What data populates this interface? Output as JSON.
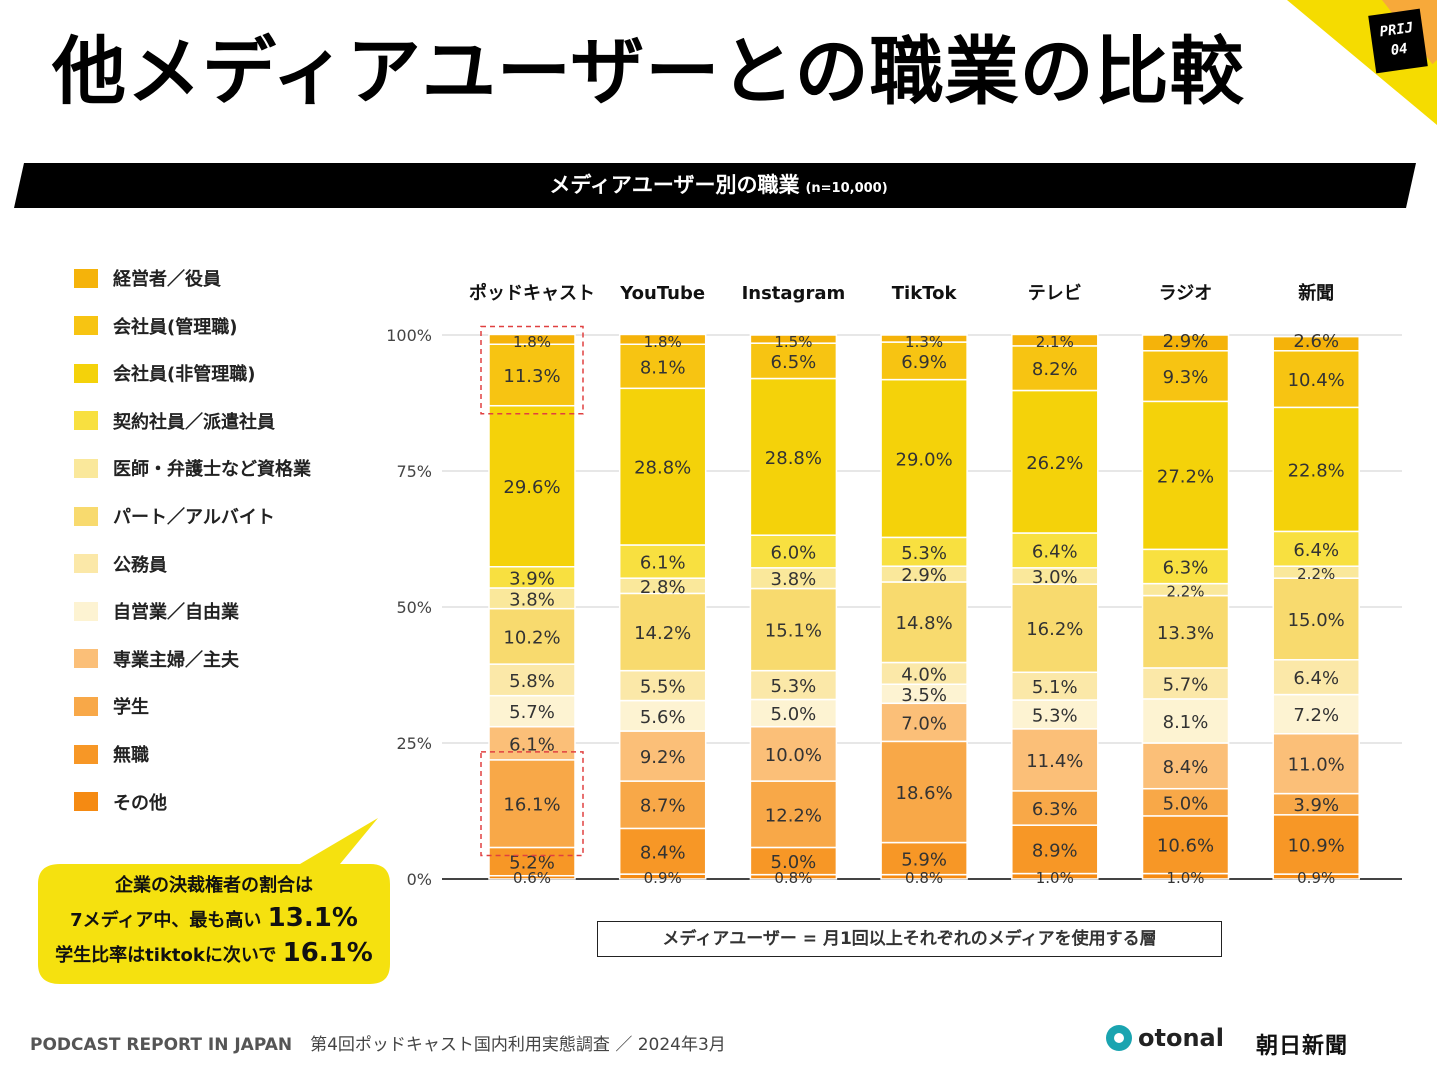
{
  "header": {
    "title": "他メディアユーザーとの職業の比較",
    "badge_line1": "PRIJ",
    "badge_line2": "04"
  },
  "banner": {
    "title": "メディアユーザー別の職業",
    "sample": "(n=10,000)"
  },
  "legend_items": [
    {
      "label": "経営者／役員",
      "color": "#F5B30A"
    },
    {
      "label": "会社員(管理職)",
      "color": "#F7C412"
    },
    {
      "label": "会社員(非管理職)",
      "color": "#F4D20A"
    },
    {
      "label": "契約社員／派遣社員",
      "color": "#F8E040"
    },
    {
      "label": "医師・弁護士など資格業",
      "color": "#FAE89B"
    },
    {
      "label": "パート／アルバイト",
      "color": "#F8DA6E"
    },
    {
      "label": "公務員",
      "color": "#FBE8A8"
    },
    {
      "label": "自営業／自由業",
      "color": "#FDF3D2"
    },
    {
      "label": "専業主婦／主夫",
      "color": "#FBBF78"
    },
    {
      "label": "学生",
      "color": "#F8A848"
    },
    {
      "label": "無職",
      "color": "#F79726"
    },
    {
      "label": "その他",
      "color": "#F58A12"
    }
  ],
  "chart_data": {
    "type": "bar",
    "stacked": true,
    "ylim": [
      0,
      100
    ],
    "yticks": [
      "0%",
      "25%",
      "50%",
      "75%",
      "100%"
    ],
    "categories": [
      "ポッドキャスト",
      "YouTube",
      "Instagram",
      "TikTok",
      "テレビ",
      "ラジオ",
      "新聞"
    ],
    "series": [
      {
        "name": "その他",
        "values": [
          0.6,
          0.9,
          0.8,
          0.8,
          1.0,
          1.0,
          0.9
        ],
        "labels": [
          "0.6%",
          "0.9%",
          "0.8%",
          "0.8%",
          "1.0%",
          "1.0%",
          "0.9%"
        ]
      },
      {
        "name": "無職",
        "values": [
          5.2,
          8.4,
          5.0,
          5.9,
          8.9,
          10.6,
          10.9
        ],
        "labels": [
          "5.2%",
          "8.4%",
          "5.0%",
          "5.9%",
          "8.9%",
          "10.6%",
          "10.9%"
        ]
      },
      {
        "name": "学生",
        "values": [
          16.1,
          8.7,
          12.2,
          18.6,
          6.3,
          5.0,
          3.9
        ],
        "labels": [
          "16.1%",
          "8.7%",
          "12.2%",
          "18.6%",
          "6.3%",
          "5.0%",
          "3.9%"
        ]
      },
      {
        "name": "専業主婦／主夫",
        "values": [
          6.1,
          9.2,
          10.0,
          7.0,
          11.4,
          8.4,
          11.0
        ],
        "labels": [
          "6.1%",
          "9.2%",
          "10.0%",
          "7.0%",
          "11.4%",
          "8.4%",
          "11.0%"
        ]
      },
      {
        "name": "自営業／自由業",
        "values": [
          5.7,
          5.6,
          5.0,
          3.5,
          5.3,
          8.1,
          7.2
        ],
        "labels": [
          "5.7%",
          "5.6%",
          "5.0%",
          "3.5%",
          "5.3%",
          "8.1%",
          "7.2%"
        ]
      },
      {
        "name": "公務員",
        "values": [
          5.8,
          5.5,
          5.3,
          4.0,
          5.1,
          5.7,
          6.4
        ],
        "labels": [
          "5.8%",
          "5.5%",
          "5.3%",
          "4.0%",
          "5.1%",
          "5.7%",
          "6.4%"
        ]
      },
      {
        "name": "パート／アルバイト",
        "values": [
          10.2,
          14.2,
          15.1,
          14.8,
          16.2,
          13.3,
          15.0
        ],
        "labels": [
          "10.2%",
          "14.2%",
          "15.1%",
          "14.8%",
          "16.2%",
          "13.3%",
          "15.0%"
        ]
      },
      {
        "name": "医師・弁護士など資格業",
        "values": [
          3.8,
          2.8,
          3.8,
          2.9,
          3.0,
          2.2,
          2.2
        ],
        "labels": [
          "3.8%",
          "2.8%",
          "3.8%",
          "2.9%",
          "3.0%",
          "2.2%",
          "2.2%"
        ]
      },
      {
        "name": "契約社員／派遣社員",
        "values": [
          3.9,
          6.1,
          6.0,
          5.3,
          6.4,
          6.3,
          6.4
        ],
        "labels": [
          "3.9%",
          "6.1%",
          "6.0%",
          "5.3%",
          "6.4%",
          "6.3%",
          "6.4%"
        ]
      },
      {
        "name": "会社員(非管理職)",
        "values": [
          29.6,
          28.8,
          28.8,
          29.0,
          26.2,
          27.2,
          22.8
        ],
        "labels": [
          "29.6%",
          "28.8%",
          "28.8%",
          "29.0%",
          "26.2%",
          "27.2%",
          "22.8%"
        ]
      },
      {
        "name": "会社員(管理職)",
        "values": [
          11.3,
          8.1,
          6.5,
          6.9,
          8.2,
          9.3,
          10.4
        ],
        "labels": [
          "11.3%",
          "8.1%",
          "6.5%",
          "6.9%",
          "8.2%",
          "9.3%",
          "10.4%"
        ]
      },
      {
        "name": "経営者／役員",
        "values": [
          1.8,
          1.8,
          1.5,
          1.3,
          2.1,
          2.9,
          2.6
        ],
        "labels": [
          "1.8%",
          "1.8%",
          "1.5%",
          "1.3%",
          "2.1%",
          "2.9%",
          "2.6%"
        ]
      }
    ],
    "highlight_boxes": [
      {
        "category": "ポッドキャスト",
        "series": [
          "経営者／役員",
          "会社員(管理職)"
        ]
      },
      {
        "category": "ポッドキャスト",
        "series": [
          "学生"
        ]
      }
    ],
    "series_colors": {
      "経営者／役員": "#F5B30A",
      "会社員(管理職)": "#F7C412",
      "会社員(非管理職)": "#F4D20A",
      "契約社員／派遣社員": "#F8E040",
      "医師・弁護士など資格業": "#FAE89B",
      "パート／アルバイト": "#F8DA6E",
      "公務員": "#FBE8A8",
      "自営業／自由業": "#FDF3D2",
      "専業主婦／主夫": "#FBBF78",
      "学生": "#F8A848",
      "無職": "#F79726",
      "その他": "#F58A12"
    }
  },
  "callout": {
    "line1": "企業の決裁権者の割合は",
    "line2_prefix": "7メディア中、最も高い",
    "line2_value": "13.1%",
    "line3_prefix": "学生比率はtiktokに次いで",
    "line3_value": "16.1%"
  },
  "note": "メディアユーザー = 月1回以上それぞれのメディアを使用する層",
  "footer": {
    "report": "PODCAST REPORT IN JAPAN",
    "survey": "第4回ポッドキャスト国内利用実態調査 ／ 2024年3月"
  },
  "logos": {
    "otonal": "otonal",
    "asahi": "朝日新聞"
  },
  "colors": {
    "accent_yellow": "#F5DC00",
    "accent_orange": "#F7A93A",
    "highlight_red": "#E04040"
  }
}
